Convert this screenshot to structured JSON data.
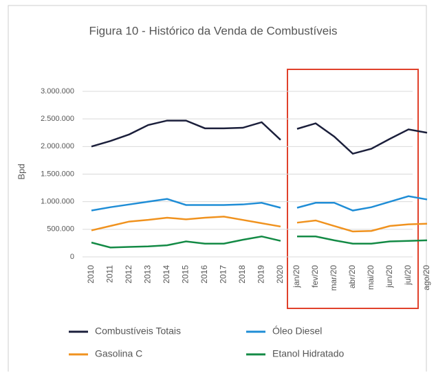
{
  "chart_data": [
    {
      "type": "line",
      "title": "Figura 10 - Histórico da Venda de Combustíveis",
      "y_label": "Bpd",
      "categories": [
        "2010",
        "2011",
        "2012",
        "2013",
        "2014",
        "2015",
        "2016",
        "2017",
        "2018",
        "2019",
        "2020"
      ],
      "ylim": [
        0,
        3000000
      ],
      "yticks": [
        0,
        {
          "value": 500000,
          "label": "500.000"
        },
        {
          "value": 1000000,
          "label": "1.000.000"
        },
        {
          "value": 1500000,
          "label": "1.500.000"
        },
        {
          "value": 2000000,
          "label": "2.000.000"
        },
        {
          "value": 2500000,
          "label": "2.500.000"
        },
        {
          "value": 3000000,
          "label": "3.000.000"
        }
      ],
      "grid": true,
      "series": [
        {
          "name": "Combustíveis Totais",
          "color": "#1b1f3b",
          "values": [
            2000000,
            2100000,
            2220000,
            2390000,
            2470000,
            2470000,
            2330000,
            2330000,
            2340000,
            2440000,
            2120000
          ]
        },
        {
          "name": "Óleo Diesel",
          "color": "#1f8dd6",
          "values": [
            840000,
            900000,
            950000,
            1000000,
            1050000,
            940000,
            940000,
            940000,
            950000,
            980000,
            890000
          ]
        },
        {
          "name": "Gasolina C",
          "color": "#f0921e",
          "values": [
            480000,
            560000,
            640000,
            670000,
            710000,
            680000,
            710000,
            730000,
            670000,
            610000,
            550000
          ]
        },
        {
          "name": "Etanol Hidratado",
          "color": "#138a45",
          "values": [
            260000,
            170000,
            180000,
            190000,
            210000,
            280000,
            240000,
            240000,
            310000,
            370000,
            290000
          ]
        }
      ]
    },
    {
      "type": "line",
      "categories": [
        "jan/20",
        "fev/20",
        "mar/20",
        "abr/20",
        "mai/20",
        "jun/20",
        "jul/20",
        "ago/20"
      ],
      "ylim": [
        0,
        3000000
      ],
      "series": [
        {
          "color": "#1b1f3b",
          "values": [
            2320000,
            2420000,
            2180000,
            1870000,
            1960000,
            2140000,
            2310000,
            2250000
          ]
        },
        {
          "color": "#1f8dd6",
          "values": [
            890000,
            980000,
            980000,
            840000,
            900000,
            1000000,
            1100000,
            1040000
          ]
        },
        {
          "color": "#f0921e",
          "values": [
            620000,
            660000,
            560000,
            460000,
            470000,
            560000,
            590000,
            600000
          ]
        },
        {
          "color": "#138a45",
          "values": [
            370000,
            370000,
            300000,
            240000,
            240000,
            280000,
            290000,
            300000
          ]
        }
      ]
    }
  ]
}
